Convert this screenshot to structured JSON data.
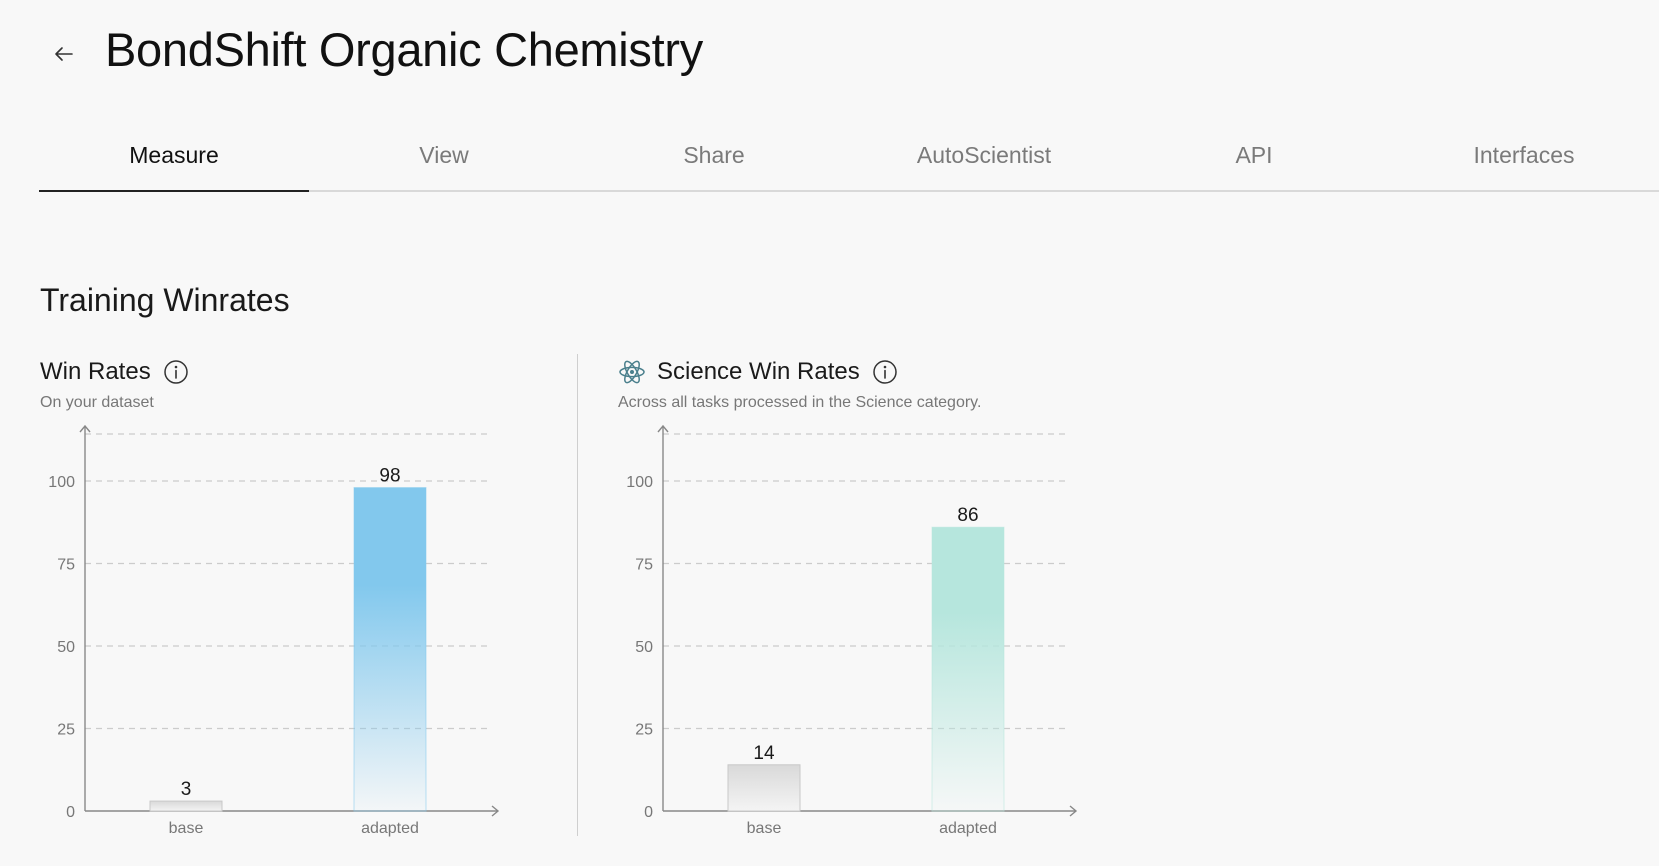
{
  "header": {
    "back_icon": "arrow-left-icon",
    "title": "BondShift Organic Chemistry"
  },
  "tabs": [
    {
      "label": "Measure",
      "active": true
    },
    {
      "label": "View",
      "active": false
    },
    {
      "label": "Share",
      "active": false
    },
    {
      "label": "AutoScientist",
      "active": false
    },
    {
      "label": "API",
      "active": false
    },
    {
      "label": "Interfaces",
      "active": false
    }
  ],
  "section": {
    "title": "Training Winrates"
  },
  "panels": {
    "win_rates": {
      "title": "Win Rates",
      "subtitle": "On your dataset",
      "info_icon": "info-circle-icon"
    },
    "science_win_rates": {
      "icon": "atom-icon",
      "title": "Science Win Rates",
      "subtitle": "Across all tasks processed in the Science category.",
      "info_icon": "info-circle-icon"
    }
  },
  "colors": {
    "base_bar": "#d9d9d9",
    "win_rates_adapted": "#82c8ed",
    "science_adapted": "#b6e6dd",
    "gridline": "#cccccc",
    "axis": "#888888",
    "atom": "#4a7f8c"
  },
  "chart_data": [
    {
      "type": "bar",
      "title": "Win Rates",
      "categories": [
        "base",
        "adapted"
      ],
      "values": [
        3,
        98
      ],
      "ylim": [
        0,
        100
      ],
      "yticks": [
        0,
        25,
        50,
        75,
        100
      ],
      "grid": true,
      "xlabel": "",
      "ylabel": ""
    },
    {
      "type": "bar",
      "title": "Science Win Rates",
      "categories": [
        "base",
        "adapted"
      ],
      "values": [
        14,
        86
      ],
      "ylim": [
        0,
        100
      ],
      "yticks": [
        0,
        25,
        50,
        75,
        100
      ],
      "grid": true,
      "xlabel": "",
      "ylabel": ""
    }
  ]
}
